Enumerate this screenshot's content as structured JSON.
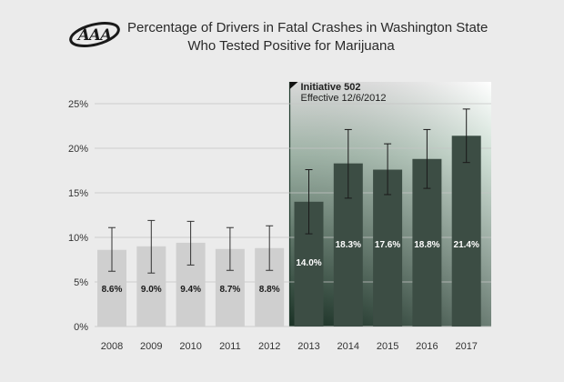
{
  "logo": {
    "text": "AAA"
  },
  "colors": {
    "background": "#ebebeb",
    "pre_bar": "#cfcfcf",
    "post_bar": "#3c4d44",
    "shade_top": "#ffffff",
    "shade_bottom": "#1f3a2c",
    "error_bar": "#333333",
    "grid": "#c4c4c4",
    "pre_label": "#1a1a1a",
    "post_label": "#ffffff"
  },
  "chart_data": {
    "type": "bar",
    "title": [
      "Percentage of Drivers in Fatal Crashes in Washington State",
      "Who Tested Positive for Marijuana"
    ],
    "categories": [
      "2008",
      "2009",
      "2010",
      "2011",
      "2012",
      "2013",
      "2014",
      "2015",
      "2016",
      "2017"
    ],
    "values": [
      8.6,
      9.0,
      9.4,
      8.7,
      8.8,
      14.0,
      18.3,
      17.6,
      18.8,
      21.4
    ],
    "value_labels": [
      "8.6%",
      "9.0%",
      "9.4%",
      "8.7%",
      "8.8%",
      "14.0%",
      "18.3%",
      "17.6%",
      "18.8%",
      "21.4%"
    ],
    "error_low": [
      6.2,
      6.0,
      6.9,
      6.3,
      6.3,
      10.4,
      14.4,
      14.8,
      15.5,
      18.4
    ],
    "error_high": [
      11.1,
      11.9,
      11.8,
      11.1,
      11.3,
      17.6,
      22.1,
      20.5,
      22.1,
      24.4
    ],
    "ylim": [
      0,
      25
    ],
    "yticks": [
      0,
      5,
      10,
      15,
      20,
      25
    ],
    "ytick_labels": [
      "0%",
      "5%",
      "10%",
      "15%",
      "20%",
      "25%"
    ],
    "grid": true,
    "annotation": {
      "title": "Initiative 502",
      "subtitle": "Effective 12/6/2012",
      "start_after_category": "2012"
    }
  }
}
